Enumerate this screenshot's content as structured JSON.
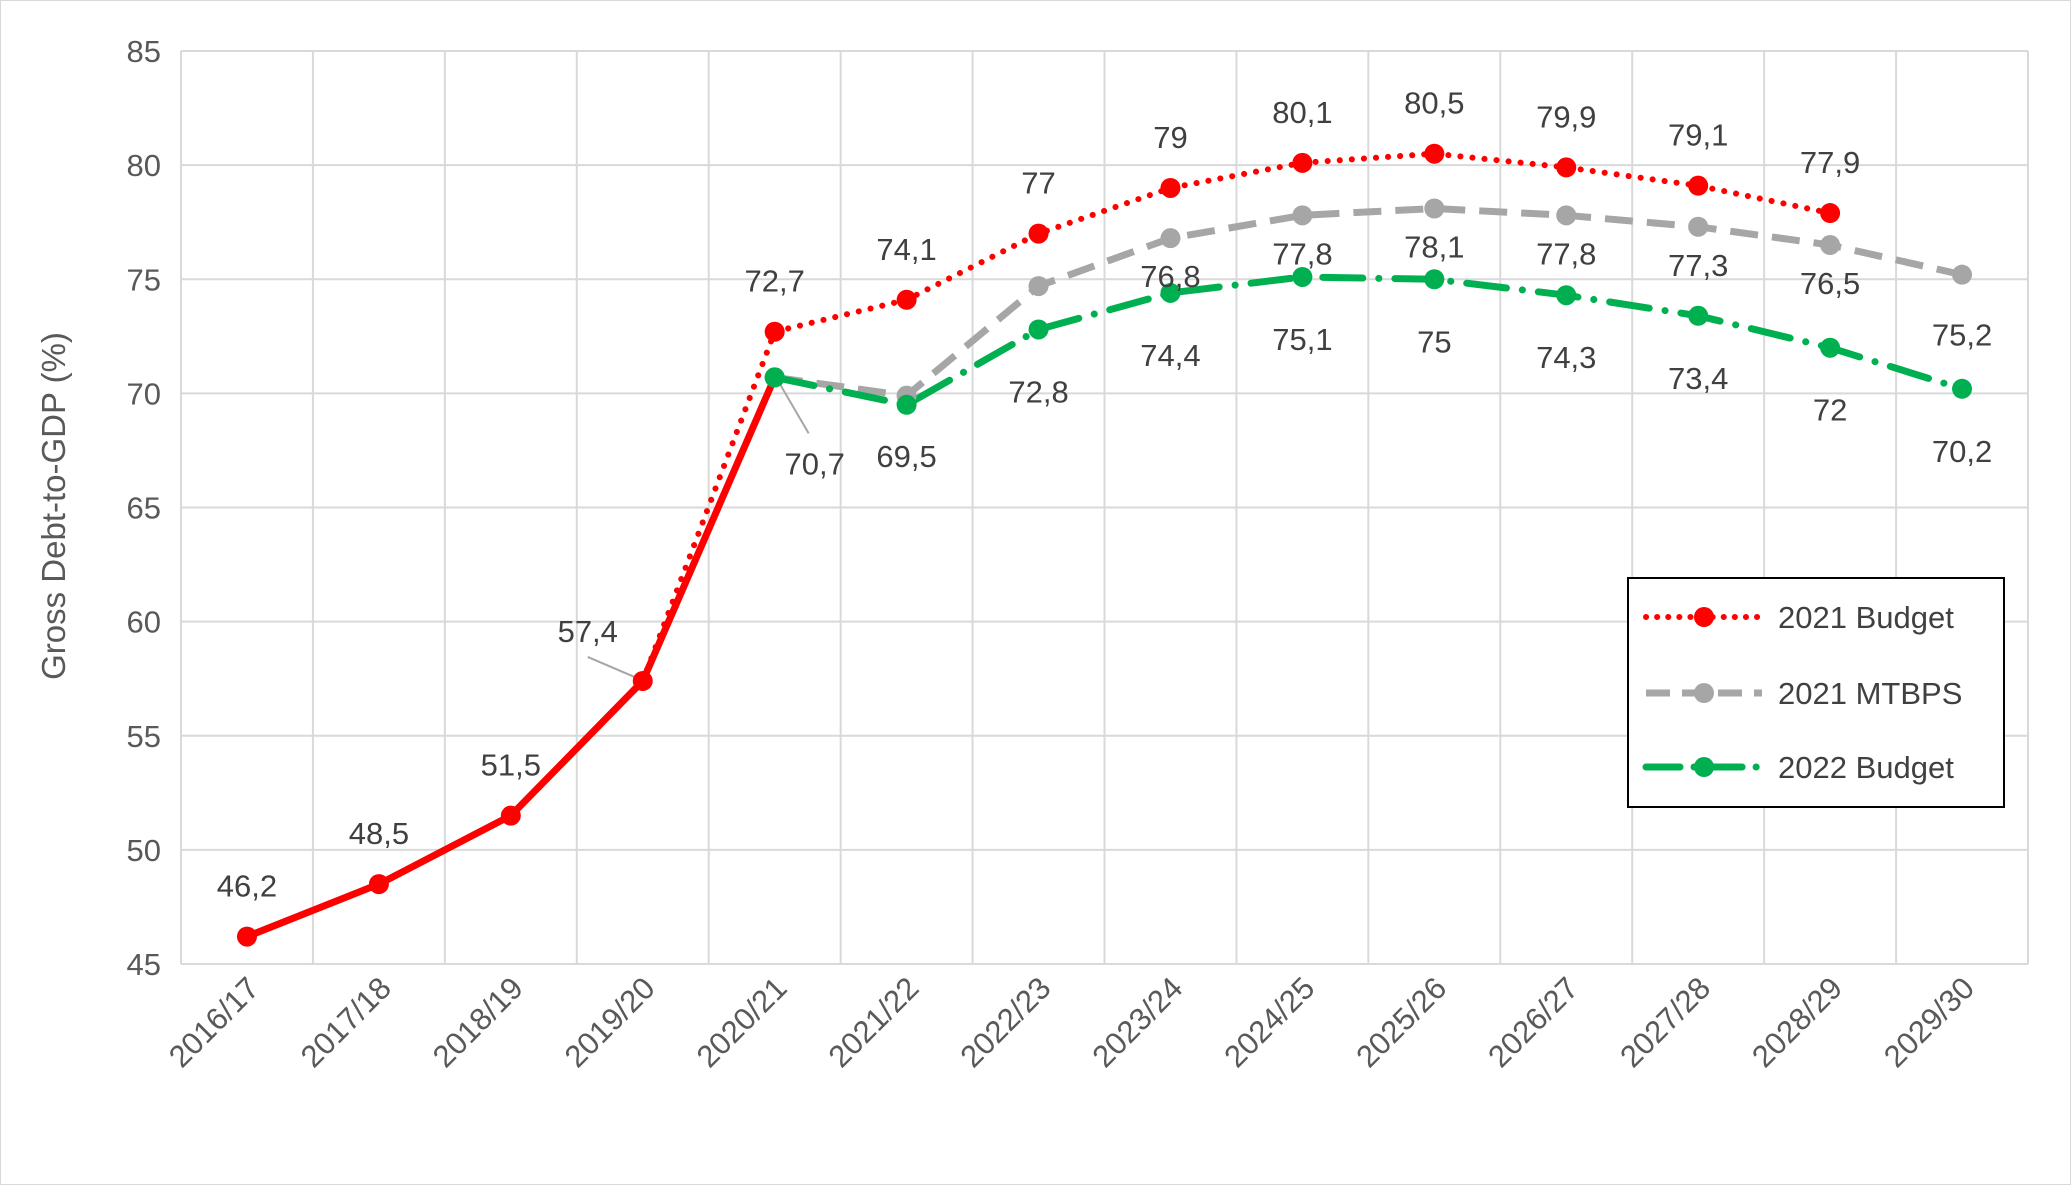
{
  "chart_data": {
    "type": "line",
    "title": "",
    "xlabel": "",
    "ylabel": "Gross Debt-to-GDP (%)",
    "ylim": [
      45,
      85
    ],
    "yticks": [
      45,
      50,
      55,
      60,
      65,
      70,
      75,
      80,
      85
    ],
    "ytick_labels": [
      "45",
      "50",
      "55",
      "60",
      "65",
      "70",
      "75",
      "80",
      "85"
    ],
    "grid": true,
    "legend_position": "right",
    "categories": [
      "2016/17",
      "2017/18",
      "2018/19",
      "2019/20",
      "2020/21",
      "2021/22",
      "2022/23",
      "2023/24",
      "2024/25",
      "2025/26",
      "2026/27",
      "2027/28",
      "2028/29",
      "2029/30"
    ],
    "historical": {
      "values": [
        46.2,
        48.5,
        51.5,
        57.4,
        70.7
      ],
      "labels": [
        "46,2",
        "48,5",
        "51,5",
        "57,4",
        "70,7"
      ],
      "color": "#ff0000"
    },
    "series": [
      {
        "name": "2021 Budget",
        "style": "dotted",
        "color": "#ff0000",
        "values": [
          null,
          null,
          null,
          57.4,
          72.7,
          74.1,
          77,
          79,
          80.1,
          80.5,
          79.9,
          79.1,
          77.9,
          null
        ],
        "labels": [
          null,
          null,
          null,
          null,
          "72,7",
          "74,1",
          "77",
          "79",
          "80,1",
          "80,5",
          "79,9",
          "79,1",
          "77,9",
          null
        ]
      },
      {
        "name": "2021 MTBPS",
        "style": "dashed",
        "color": "#a6a6a6",
        "values": [
          null,
          null,
          null,
          null,
          70.7,
          69.9,
          74.7,
          76.8,
          77.8,
          78.1,
          77.8,
          77.3,
          76.5,
          75.2
        ],
        "labels": [
          null,
          null,
          null,
          null,
          null,
          null,
          null,
          "76,8",
          "77,8",
          "78,1",
          "77,8",
          "77,3",
          "76,5",
          "75,2"
        ]
      },
      {
        "name": "2022 Budget",
        "style": "dash-dot",
        "color": "#00b050",
        "values": [
          null,
          null,
          null,
          null,
          70.7,
          69.5,
          72.8,
          74.4,
          75.1,
          75,
          74.3,
          73.4,
          72,
          70.2
        ],
        "labels": [
          null,
          null,
          null,
          null,
          null,
          "69,5",
          "72,8",
          "74,4",
          "75,1",
          "75",
          "74,3",
          "73,4",
          "72",
          "70,2"
        ]
      }
    ]
  }
}
